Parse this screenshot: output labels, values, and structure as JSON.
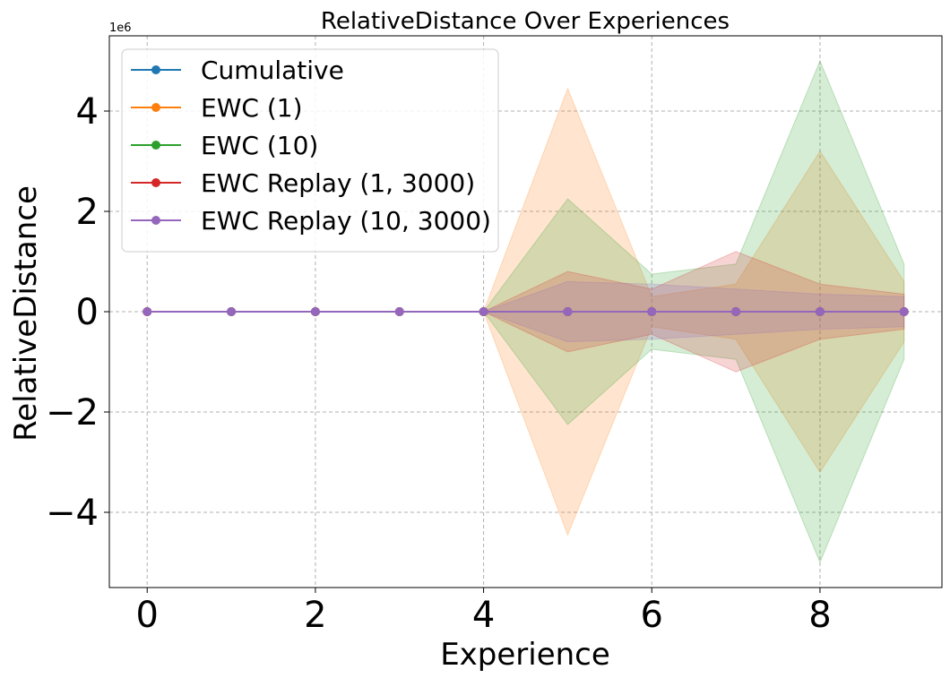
{
  "chart_data": {
    "type": "line",
    "title": "RelativeDistance Over Experiences",
    "xlabel": "Experience",
    "ylabel": "RelativeDistance",
    "y_offset_label": "1e6",
    "xlim": [
      -0.45,
      9.45
    ],
    "ylim": [
      -5.5,
      5.5
    ],
    "xticks": [
      0,
      2,
      4,
      6,
      8
    ],
    "xtick_labels": [
      "0",
      "2",
      "4",
      "6",
      "8"
    ],
    "yticks": [
      -4,
      -2,
      0,
      2,
      4
    ],
    "ytick_labels": [
      "−4",
      "−2",
      "0",
      "2",
      "4"
    ],
    "grid": true,
    "legend_position": "upper-left",
    "x": [
      0,
      1,
      2,
      3,
      4,
      5,
      6,
      7,
      8,
      9
    ],
    "series": [
      {
        "name": "Cumulative",
        "color": "#1f77b4",
        "values": [
          0,
          0,
          0,
          0,
          0,
          0,
          0,
          0,
          0,
          0
        ],
        "band": [
          0,
          0,
          0,
          0,
          0,
          0,
          0,
          0,
          0,
          0
        ]
      },
      {
        "name": "EWC (1)",
        "color": "#ff7f0e",
        "values": [
          0,
          0,
          0,
          0,
          0,
          0,
          0,
          0,
          0,
          0
        ],
        "band": [
          0,
          0,
          0,
          0,
          0,
          4.45,
          0.3,
          0.55,
          3.2,
          0.6
        ]
      },
      {
        "name": "EWC (10)",
        "color": "#2ca02c",
        "values": [
          0,
          0,
          0,
          0,
          0,
          0,
          0,
          0,
          0,
          0
        ],
        "band": [
          0,
          0,
          0,
          0,
          0,
          2.25,
          0.75,
          0.95,
          5.0,
          0.95
        ]
      },
      {
        "name": "EWC Replay (1, 3000)",
        "color": "#d62728",
        "values": [
          0,
          0,
          0,
          0,
          0,
          0,
          0,
          0,
          0,
          0
        ],
        "band": [
          0,
          0,
          0,
          0,
          0,
          0.8,
          0.45,
          1.2,
          0.55,
          0.35
        ]
      },
      {
        "name": "EWC Replay (10, 3000)",
        "color": "#9467bd",
        "values": [
          0,
          0,
          0,
          0,
          0,
          0,
          0,
          0,
          0,
          0
        ],
        "band": [
          0,
          0,
          0,
          0,
          0,
          0.6,
          0.55,
          0.45,
          0.35,
          0.3
        ]
      }
    ]
  }
}
